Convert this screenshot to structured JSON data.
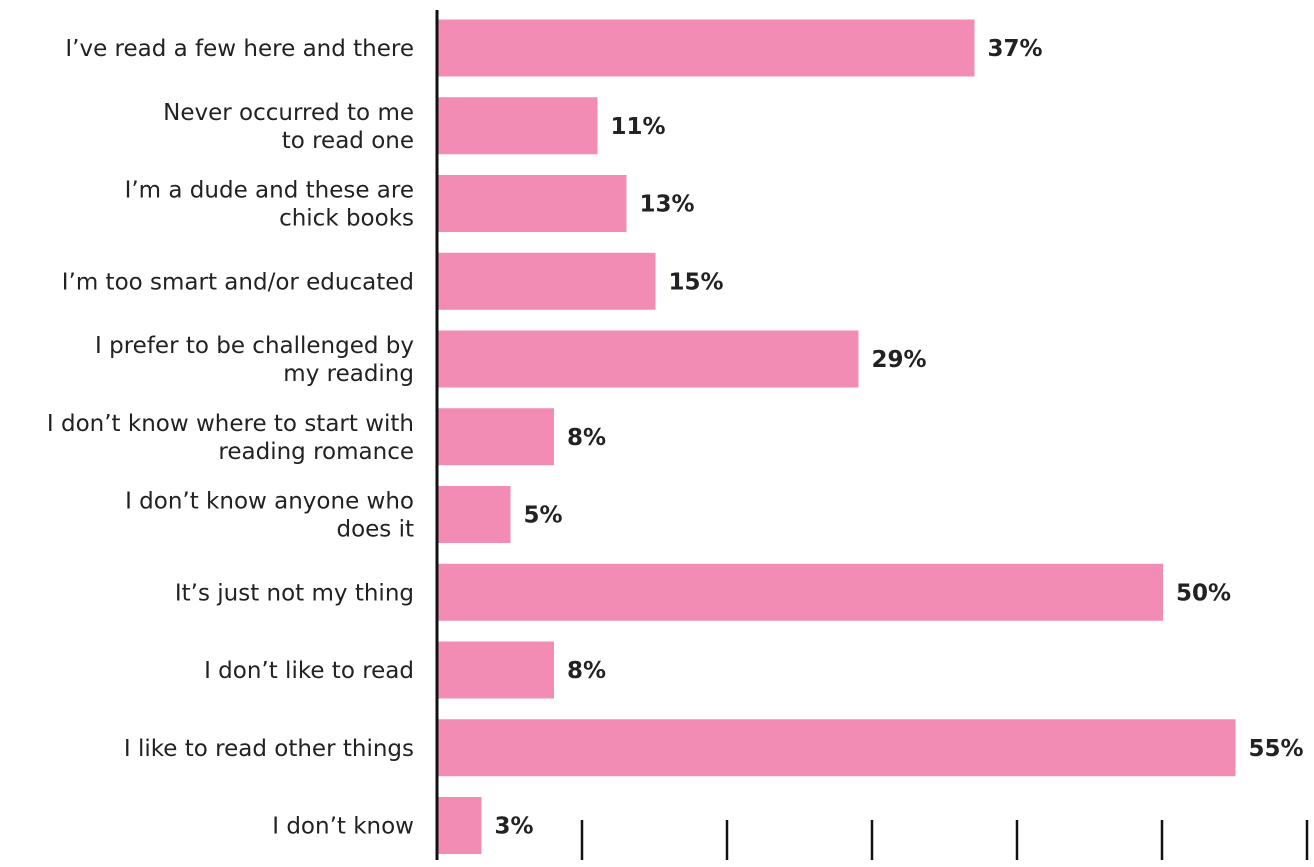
{
  "chart_data": {
    "type": "bar",
    "orientation": "horizontal",
    "categories": [
      [
        "I’ve read a few here and there"
      ],
      [
        "Never occurred to me",
        "to read one"
      ],
      [
        "I’m a dude and these are",
        "chick books"
      ],
      [
        "I’m too smart and/or educated"
      ],
      [
        "I prefer to be challenged by",
        "my reading"
      ],
      [
        "I don’t know where to start with",
        "reading romance"
      ],
      [
        "I don’t know anyone who",
        "does it"
      ],
      [
        "It’s just not my thing"
      ],
      [
        "I don’t like to read"
      ],
      [
        "I like to read other things"
      ],
      [
        "I don’t know"
      ]
    ],
    "values": [
      37,
      11,
      13,
      15,
      29,
      8,
      5,
      50,
      8,
      55,
      3
    ],
    "value_labels": [
      "37%",
      "11%",
      "13%",
      "15%",
      "29%",
      "8%",
      "5%",
      "50%",
      "8%",
      "55%",
      "3%"
    ],
    "xlim": [
      0,
      60
    ],
    "x_ticks": [
      0,
      10,
      20,
      30,
      40,
      50,
      60
    ],
    "title": "",
    "xlabel": "",
    "ylabel": "",
    "grid": false,
    "colors": {
      "bar": "#f28cb4",
      "axis": "#111111",
      "text": "#222222"
    }
  }
}
